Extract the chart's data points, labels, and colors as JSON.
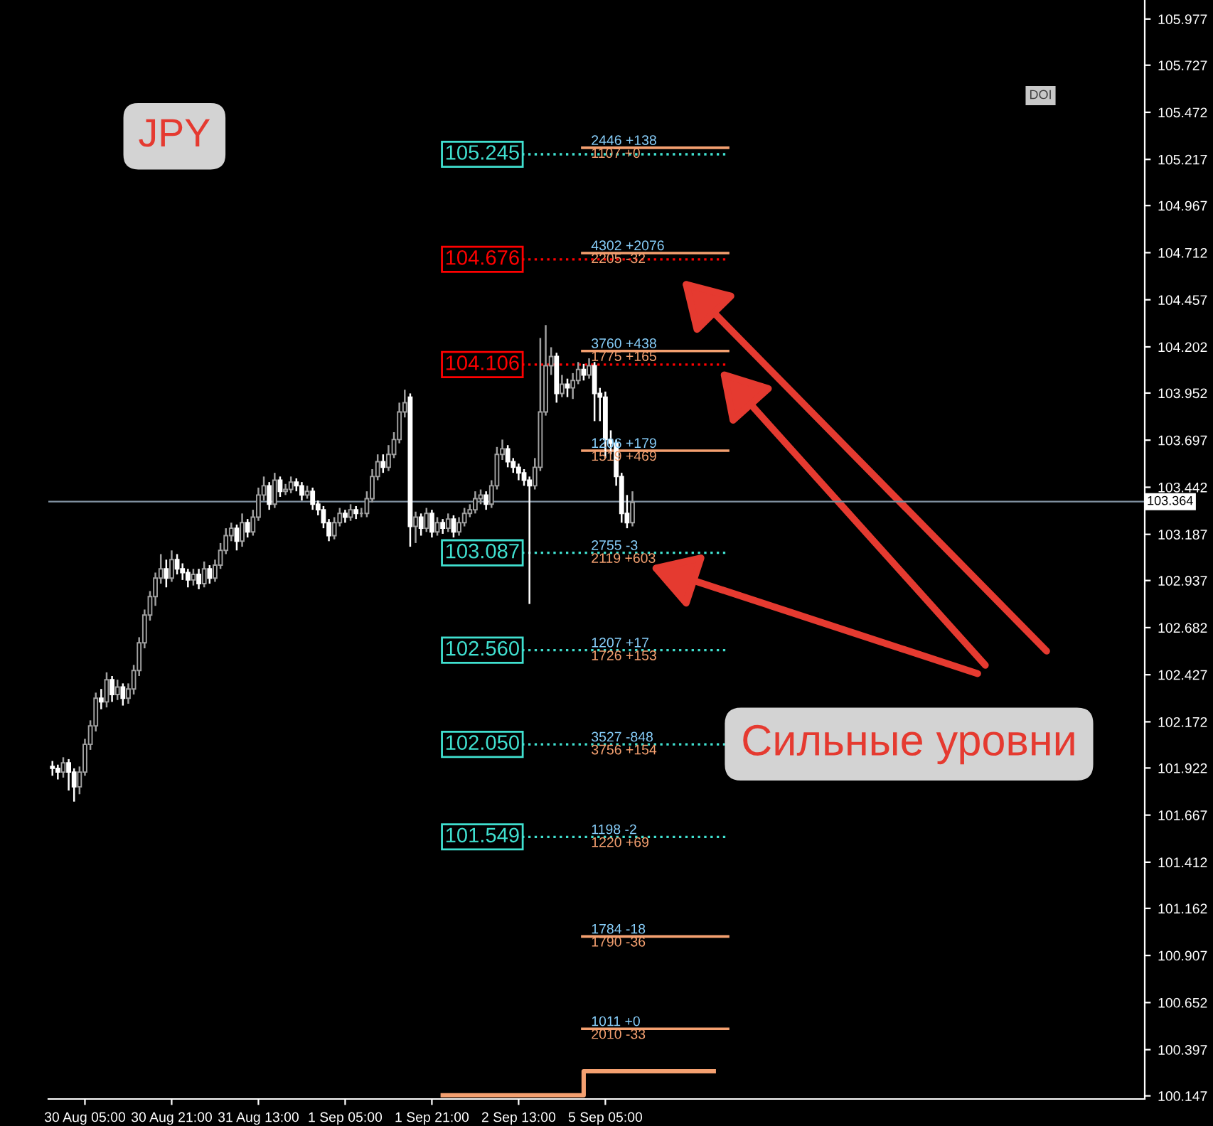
{
  "chart_data": {
    "type": "candlestick",
    "title": "JPY",
    "categories": [
      null,
      null,
      null,
      null,
      null,
      null,
      "30 Aug 05:00",
      null,
      null,
      null,
      null,
      null,
      null,
      null,
      null,
      null,
      null,
      null,
      null,
      null,
      null,
      null,
      "30 Aug 21:00",
      null,
      null,
      null,
      null,
      null,
      null,
      null,
      null,
      null,
      null,
      null,
      null,
      null,
      null,
      null,
      "31 Aug 13:00",
      null,
      null,
      null,
      null,
      null,
      null,
      null,
      null,
      null,
      null,
      null,
      null,
      null,
      null,
      null,
      "1 Sep 05:00",
      null,
      null,
      null,
      null,
      null,
      null,
      null,
      null,
      null,
      null,
      null,
      null,
      null,
      null,
      null,
      "1 Sep 21:00",
      null,
      null,
      null,
      null,
      null,
      null,
      null,
      null,
      null,
      null,
      null,
      null,
      null,
      null,
      null,
      "2 Sep 13:00",
      null,
      null,
      null,
      null,
      null,
      null,
      null,
      null,
      null,
      null,
      null,
      null,
      null,
      null,
      null,
      "5 Sep 05:00",
      null,
      null,
      null,
      null,
      null,
      null,
      null,
      null,
      null,
      null,
      null,
      null,
      null,
      null,
      null,
      null,
      null,
      null,
      null,
      null,
      null,
      null,
      null,
      null,
      null,
      null,
      null,
      null,
      null,
      null,
      null,
      null,
      null,
      null,
      null,
      null,
      null,
      null,
      null,
      null,
      null,
      null,
      null,
      null,
      null,
      null,
      null,
      null,
      null,
      null,
      null,
      null,
      null,
      null,
      null,
      null,
      null,
      null,
      null,
      null,
      null,
      null,
      null,
      null,
      null,
      null,
      null,
      null,
      null,
      null,
      null,
      null,
      null,
      null,
      null,
      null,
      null,
      null,
      null,
      null,
      null,
      null,
      null,
      null,
      null,
      null,
      null,
      null,
      null,
      null,
      null,
      null,
      null,
      null,
      null,
      null,
      null,
      null,
      null
    ],
    "ohlc": [
      [
        101.93,
        101.96,
        101.88,
        101.92
      ],
      [
        101.92,
        101.94,
        101.86,
        101.9
      ],
      [
        101.9,
        101.98,
        101.87,
        101.95
      ],
      [
        101.95,
        101.97,
        101.8,
        101.9
      ],
      [
        101.9,
        101.92,
        101.74,
        101.82
      ],
      [
        101.82,
        101.93,
        101.78,
        101.9
      ],
      [
        101.9,
        102.08,
        101.88,
        102.05
      ],
      [
        102.05,
        102.18,
        102.02,
        102.15
      ],
      [
        102.15,
        102.33,
        102.12,
        102.3
      ],
      [
        102.3,
        102.35,
        102.24,
        102.28
      ],
      [
        102.28,
        102.44,
        102.25,
        102.4
      ],
      [
        102.4,
        102.42,
        102.28,
        102.32
      ],
      [
        102.32,
        102.4,
        102.29,
        102.36
      ],
      [
        102.36,
        102.38,
        102.26,
        102.3
      ],
      [
        102.3,
        102.38,
        102.27,
        102.35
      ],
      [
        102.35,
        102.48,
        102.32,
        102.45
      ],
      [
        102.45,
        102.63,
        102.42,
        102.6
      ],
      [
        102.6,
        102.78,
        102.57,
        102.75
      ],
      [
        102.75,
        102.88,
        102.72,
        102.85
      ],
      [
        102.85,
        102.98,
        102.8,
        102.95
      ],
      [
        102.95,
        103.08,
        102.92,
        103.0
      ],
      [
        103.0,
        103.05,
        102.9,
        102.95
      ],
      [
        102.95,
        103.1,
        102.93,
        103.05
      ],
      [
        103.05,
        103.08,
        102.97,
        103.0
      ],
      [
        103.0,
        103.03,
        102.94,
        102.98
      ],
      [
        102.98,
        103.0,
        102.9,
        102.94
      ],
      [
        102.94,
        103.0,
        102.91,
        102.97
      ],
      [
        102.97,
        103.0,
        102.89,
        102.92
      ],
      [
        102.92,
        103.04,
        102.9,
        103.0
      ],
      [
        103.0,
        103.02,
        102.92,
        102.95
      ],
      [
        102.95,
        103.05,
        102.93,
        103.02
      ],
      [
        103.02,
        103.14,
        103.0,
        103.1
      ],
      [
        103.1,
        103.22,
        103.08,
        103.18
      ],
      [
        103.18,
        103.25,
        103.15,
        103.22
      ],
      [
        103.22,
        103.24,
        103.1,
        103.15
      ],
      [
        103.15,
        103.3,
        103.12,
        103.25
      ],
      [
        103.25,
        103.27,
        103.17,
        103.2
      ],
      [
        103.2,
        103.32,
        103.18,
        103.28
      ],
      [
        103.28,
        103.44,
        103.26,
        103.4
      ],
      [
        103.4,
        103.5,
        103.37,
        103.45
      ],
      [
        103.45,
        103.47,
        103.32,
        103.35
      ],
      [
        103.35,
        103.52,
        103.33,
        103.48
      ],
      [
        103.48,
        103.5,
        103.39,
        103.42
      ],
      [
        103.42,
        103.46,
        103.4,
        103.43
      ],
      [
        103.43,
        103.5,
        103.41,
        103.47
      ],
      [
        103.47,
        103.49,
        103.42,
        103.45
      ],
      [
        103.45,
        103.47,
        103.37,
        103.4
      ],
      [
        103.4,
        103.45,
        103.38,
        103.42
      ],
      [
        103.42,
        103.44,
        103.32,
        103.35
      ],
      [
        103.35,
        103.37,
        103.29,
        103.32
      ],
      [
        103.32,
        103.34,
        103.22,
        103.25
      ],
      [
        103.25,
        103.27,
        103.15,
        103.18
      ],
      [
        103.18,
        103.28,
        103.16,
        103.25
      ],
      [
        103.25,
        103.33,
        103.23,
        103.3
      ],
      [
        103.3,
        103.32,
        103.25,
        103.28
      ],
      [
        103.28,
        103.35,
        103.26,
        103.32
      ],
      [
        103.32,
        103.34,
        103.27,
        103.3
      ],
      [
        103.3,
        103.33,
        103.28,
        103.3
      ],
      [
        103.3,
        103.42,
        103.28,
        103.38
      ],
      [
        103.38,
        103.54,
        103.36,
        103.5
      ],
      [
        103.5,
        103.62,
        103.48,
        103.58
      ],
      [
        103.58,
        103.62,
        103.52,
        103.55
      ],
      [
        103.55,
        103.67,
        103.53,
        103.62
      ],
      [
        103.62,
        103.74,
        103.6,
        103.7
      ],
      [
        103.7,
        103.9,
        103.68,
        103.85
      ],
      [
        103.85,
        103.97,
        103.82,
        103.9
      ],
      [
        103.93,
        103.95,
        103.12,
        103.23
      ],
      [
        103.23,
        103.31,
        103.14,
        103.28
      ],
      [
        103.28,
        103.3,
        103.18,
        103.22
      ],
      [
        103.22,
        103.33,
        103.2,
        103.3
      ],
      [
        103.3,
        103.32,
        103.17,
        103.2
      ],
      [
        103.2,
        103.28,
        103.18,
        103.25
      ],
      [
        103.25,
        103.27,
        103.19,
        103.22
      ],
      [
        103.22,
        103.3,
        103.2,
        103.27
      ],
      [
        103.27,
        103.29,
        103.17,
        103.2
      ],
      [
        103.2,
        103.28,
        103.18,
        103.25
      ],
      [
        103.25,
        103.33,
        103.23,
        103.3
      ],
      [
        103.3,
        103.35,
        103.28,
        103.32
      ],
      [
        103.32,
        103.42,
        103.3,
        103.38
      ],
      [
        103.38,
        103.43,
        103.35,
        103.4
      ],
      [
        103.4,
        103.42,
        103.32,
        103.35
      ],
      [
        103.35,
        103.48,
        103.33,
        103.45
      ],
      [
        103.45,
        103.66,
        103.43,
        103.62
      ],
      [
        103.62,
        103.7,
        103.59,
        103.65
      ],
      [
        103.65,
        103.67,
        103.55,
        103.58
      ],
      [
        103.58,
        103.6,
        103.52,
        103.55
      ],
      [
        103.55,
        103.57,
        103.48,
        103.52
      ],
      [
        103.52,
        103.54,
        103.45,
        103.48
      ],
      [
        103.48,
        103.5,
        102.81,
        103.45
      ],
      [
        103.45,
        103.6,
        103.43,
        103.55
      ],
      [
        103.55,
        104.25,
        103.53,
        103.85
      ],
      [
        103.85,
        104.32,
        103.83,
        104.1
      ],
      [
        104.1,
        104.2,
        104.05,
        104.15
      ],
      [
        104.15,
        104.17,
        103.9,
        103.95
      ],
      [
        103.95,
        104.05,
        103.93,
        104.0
      ],
      [
        104.0,
        104.03,
        103.93,
        103.98
      ],
      [
        103.98,
        104.06,
        103.92,
        104.02
      ],
      [
        104.02,
        104.12,
        104.0,
        104.08
      ],
      [
        104.08,
        104.11,
        104.02,
        104.05
      ],
      [
        104.05,
        104.14,
        104.03,
        104.1
      ],
      [
        104.1,
        104.12,
        103.8,
        103.95
      ],
      [
        103.95,
        103.98,
        103.8,
        103.93
      ],
      [
        103.93,
        103.96,
        103.6,
        103.7
      ],
      [
        103.7,
        103.75,
        103.62,
        103.68
      ],
      [
        103.68,
        103.7,
        103.45,
        103.5
      ],
      [
        103.5,
        103.52,
        103.25,
        103.3
      ],
      [
        103.3,
        103.4,
        103.22,
        103.25
      ],
      [
        103.25,
        103.42,
        103.23,
        103.36
      ],
      null,
      null,
      null,
      null,
      null,
      null,
      null,
      null,
      null,
      null,
      null,
      null,
      null,
      null,
      null,
      null,
      null,
      null,
      null,
      null,
      null,
      null,
      null,
      null,
      null,
      null,
      null,
      null,
      null,
      null,
      null,
      null,
      null,
      null,
      null,
      null,
      null,
      null,
      null,
      null,
      null,
      null,
      null,
      null,
      null,
      null,
      null,
      null,
      null,
      null,
      null,
      null,
      null,
      null,
      null,
      null,
      null,
      null,
      null,
      null,
      null,
      null,
      null,
      null,
      null,
      null,
      null,
      null,
      null,
      null,
      null,
      null,
      null,
      null,
      null,
      null,
      null,
      null,
      null,
      null,
      null,
      null,
      null,
      null,
      null,
      null,
      null,
      null,
      null,
      null,
      null,
      null,
      null,
      null
    ],
    "series": [
      {
        "type": "step",
        "color": "#f4a070",
        "values": [
          null,
          null,
          null,
          null,
          null,
          null,
          null,
          null,
          null,
          null,
          null,
          null,
          null,
          null,
          null,
          null,
          null,
          null,
          null,
          null,
          null,
          null,
          null,
          null,
          null,
          null,
          null,
          null,
          null,
          null,
          null,
          null,
          null,
          null,
          null,
          null,
          null,
          null,
          null,
          null,
          null,
          null,
          null,
          null,
          null,
          null,
          null,
          null,
          null,
          null,
          null,
          null,
          null,
          null,
          null,
          null,
          null,
          null,
          null,
          null,
          null,
          null,
          null,
          null,
          null,
          null,
          null,
          null,
          null,
          null,
          null,
          null,
          100.15,
          100.15,
          100.15,
          100.15,
          100.15,
          100.15,
          100.15,
          100.15,
          100.15,
          100.15,
          100.15,
          100.15,
          100.15,
          100.15,
          100.15,
          100.15,
          100.15,
          100.15,
          100.15,
          100.15,
          100.15,
          100.15,
          100.15,
          100.15,
          100.15,
          100.15,
          100.28,
          100.28,
          100.28,
          100.28,
          100.28,
          100.28,
          100.28,
          100.28,
          100.28,
          100.28,
          100.28,
          100.28,
          100.28,
          100.28,
          100.28,
          100.28,
          100.28,
          100.28,
          100.28,
          100.28,
          100.28,
          100.28,
          100.28,
          100.28,
          null,
          null,
          null,
          null,
          null,
          null,
          null,
          null,
          null,
          null,
          null,
          null,
          null,
          null,
          null,
          null,
          null,
          null,
          null,
          null,
          null,
          null,
          null,
          null,
          null,
          null,
          null,
          null,
          null,
          null,
          null,
          null,
          null,
          null,
          null,
          null,
          null,
          null,
          null,
          null,
          null,
          null,
          null,
          null,
          null,
          null,
          null,
          null,
          null,
          null,
          null,
          null,
          null,
          null,
          null,
          null,
          null,
          null,
          null,
          null,
          null,
          null,
          null,
          null,
          null,
          null,
          null,
          null,
          null,
          null,
          null,
          null,
          null,
          null,
          null,
          null,
          null,
          null,
          null,
          null
        ]
      }
    ],
    "ylim": [
      100.13,
      106.08
    ],
    "yticks": [
      105.977,
      105.727,
      105.472,
      105.217,
      104.967,
      104.712,
      104.457,
      104.202,
      103.952,
      103.697,
      103.442,
      103.187,
      102.937,
      102.682,
      102.427,
      102.172,
      101.922,
      101.667,
      101.412,
      101.162,
      100.907,
      100.652,
      100.397,
      100.147
    ],
    "ref_lines": [
      {
        "axis": "y",
        "value": 103.364,
        "label": "103.364",
        "color": "#8090a0"
      },
      {
        "axis": "y",
        "value": 105.245,
        "label": "105.245",
        "color": "#40e0d0",
        "line_style": "dotted"
      },
      {
        "axis": "y",
        "value": 104.676,
        "label": "104.676",
        "color": "#ff0000",
        "line_style": "dotted"
      },
      {
        "axis": "y",
        "value": 104.106,
        "label": "104.106",
        "color": "#ff0000",
        "line_style": "dotted"
      },
      {
        "axis": "y",
        "value": 103.087,
        "label": "103.087",
        "color": "#40e0d0",
        "line_style": "dotted"
      },
      {
        "axis": "y",
        "value": 102.56,
        "label": "102.560",
        "color": "#40e0d0",
        "line_style": "dotted"
      },
      {
        "axis": "y",
        "value": 102.05,
        "label": "102.050",
        "color": "#40e0d0",
        "line_style": "dotted"
      },
      {
        "axis": "y",
        "value": 101.549,
        "label": "101.549",
        "color": "#40e0d0",
        "line_style": "dotted"
      },
      {
        "axis": "y",
        "value": 105.28,
        "color": "#f4a070",
        "line_style": "solid"
      },
      {
        "axis": "y",
        "value": 104.71,
        "color": "#f4a070",
        "line_style": "solid"
      },
      {
        "axis": "y",
        "value": 104.18,
        "color": "#f4a070",
        "line_style": "solid"
      },
      {
        "axis": "y",
        "value": 103.64,
        "color": "#f4a070",
        "line_style": "solid"
      },
      {
        "axis": "y",
        "value": 101.01,
        "color": "#f4a070",
        "line_style": "solid"
      },
      {
        "axis": "y",
        "value": 100.51,
        "color": "#f4a070",
        "line_style": "solid"
      }
    ],
    "annotations": [
      "DOI",
      "Сильные уровни",
      {
        "text": "2446 +138",
        "y": 105.28
      },
      {
        "text": "1107 +0",
        "y": 105.28
      },
      {
        "text": "4302 +2076",
        "y": 104.71
      },
      {
        "text": "2205 -32",
        "y": 104.71
      },
      {
        "text": "3760 +438",
        "y": 104.18
      },
      {
        "text": "1775 +165",
        "y": 104.18
      },
      {
        "text": "1206 +179",
        "y": 103.64
      },
      {
        "text": "1519 +469",
        "y": 103.64
      },
      {
        "text": "2755 -3",
        "y": 103.087
      },
      {
        "text": "2119 +603",
        "y": 103.087
      },
      {
        "text": "1207 +17",
        "y": 102.56
      },
      {
        "text": "1726 +153",
        "y": 102.56
      },
      {
        "text": "3527 -848",
        "y": 102.05
      },
      {
        "text": "3756 +154",
        "y": 102.05
      },
      {
        "text": "1198 -2",
        "y": 101.549
      },
      {
        "text": "1220 +69",
        "y": 101.549
      },
      {
        "text": "1784 -18",
        "y": 101.01
      },
      {
        "text": "1790 -36",
        "y": 101.01
      },
      {
        "text": "1011 +0",
        "y": 100.51
      },
      {
        "text": "2010 -33",
        "y": 100.51
      }
    ]
  }
}
